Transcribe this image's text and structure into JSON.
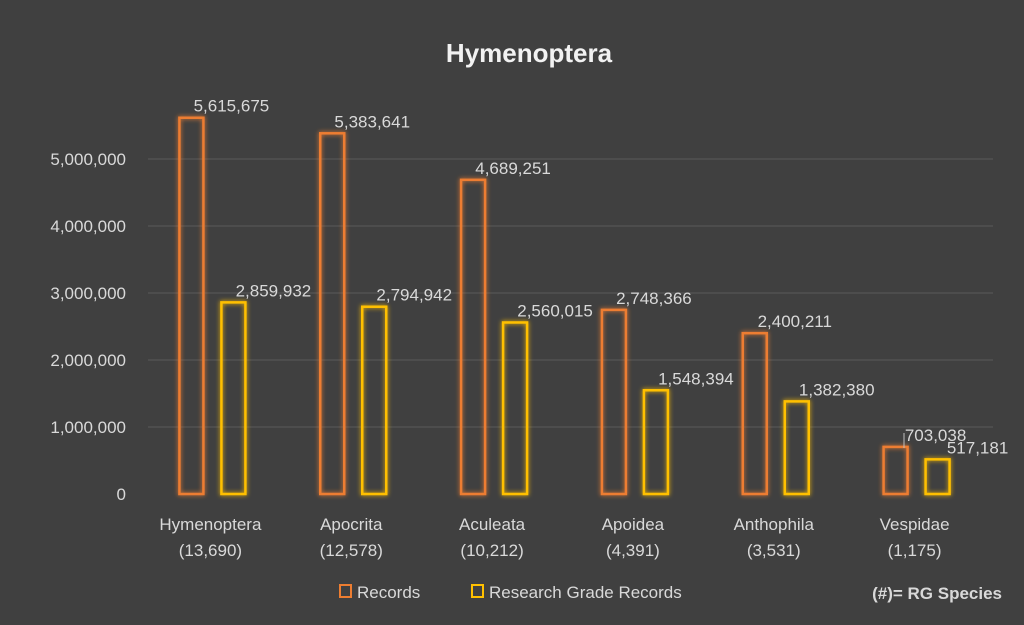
{
  "chart_data": {
    "type": "bar",
    "title": "Hymenoptera",
    "categories": [
      [
        "Hymenoptera",
        "(13,690)"
      ],
      [
        "Apocrita",
        "(12,578)"
      ],
      [
        "Aculeata",
        "(10,212)"
      ],
      [
        "Apoidea",
        "(4,391)"
      ],
      [
        "Anthophila",
        "(3,531)"
      ],
      [
        "Vespidae",
        "(1,175)"
      ]
    ],
    "series": [
      {
        "name": "Records",
        "color": "#ed7d31",
        "values": [
          5615675,
          5383641,
          4689251,
          2748366,
          2400211,
          703038
        ],
        "labels": [
          "5,615,675",
          "5,383,641",
          "4,689,251",
          "2,748,366",
          "2,400,211",
          "703,038"
        ]
      },
      {
        "name": "Research Grade Records",
        "color": "#ffc000",
        "values": [
          2859932,
          2794942,
          2560015,
          1548394,
          1382380,
          517181
        ],
        "labels": [
          "2,859,932",
          "2,794,942",
          "2,560,015",
          "1,548,394",
          "1,382,380",
          "517,181"
        ]
      }
    ],
    "yticks": [
      0,
      1000000,
      2000000,
      3000000,
      4000000,
      5000000
    ],
    "ytick_labels": [
      "0",
      "1,000,000",
      "2,000,000",
      "3,000,000",
      "4,000,000",
      "5,000,000"
    ],
    "ylim": [
      0,
      6000000
    ],
    "grid": true,
    "legend": "bottom",
    "annotation": "(#)= RG Species"
  }
}
